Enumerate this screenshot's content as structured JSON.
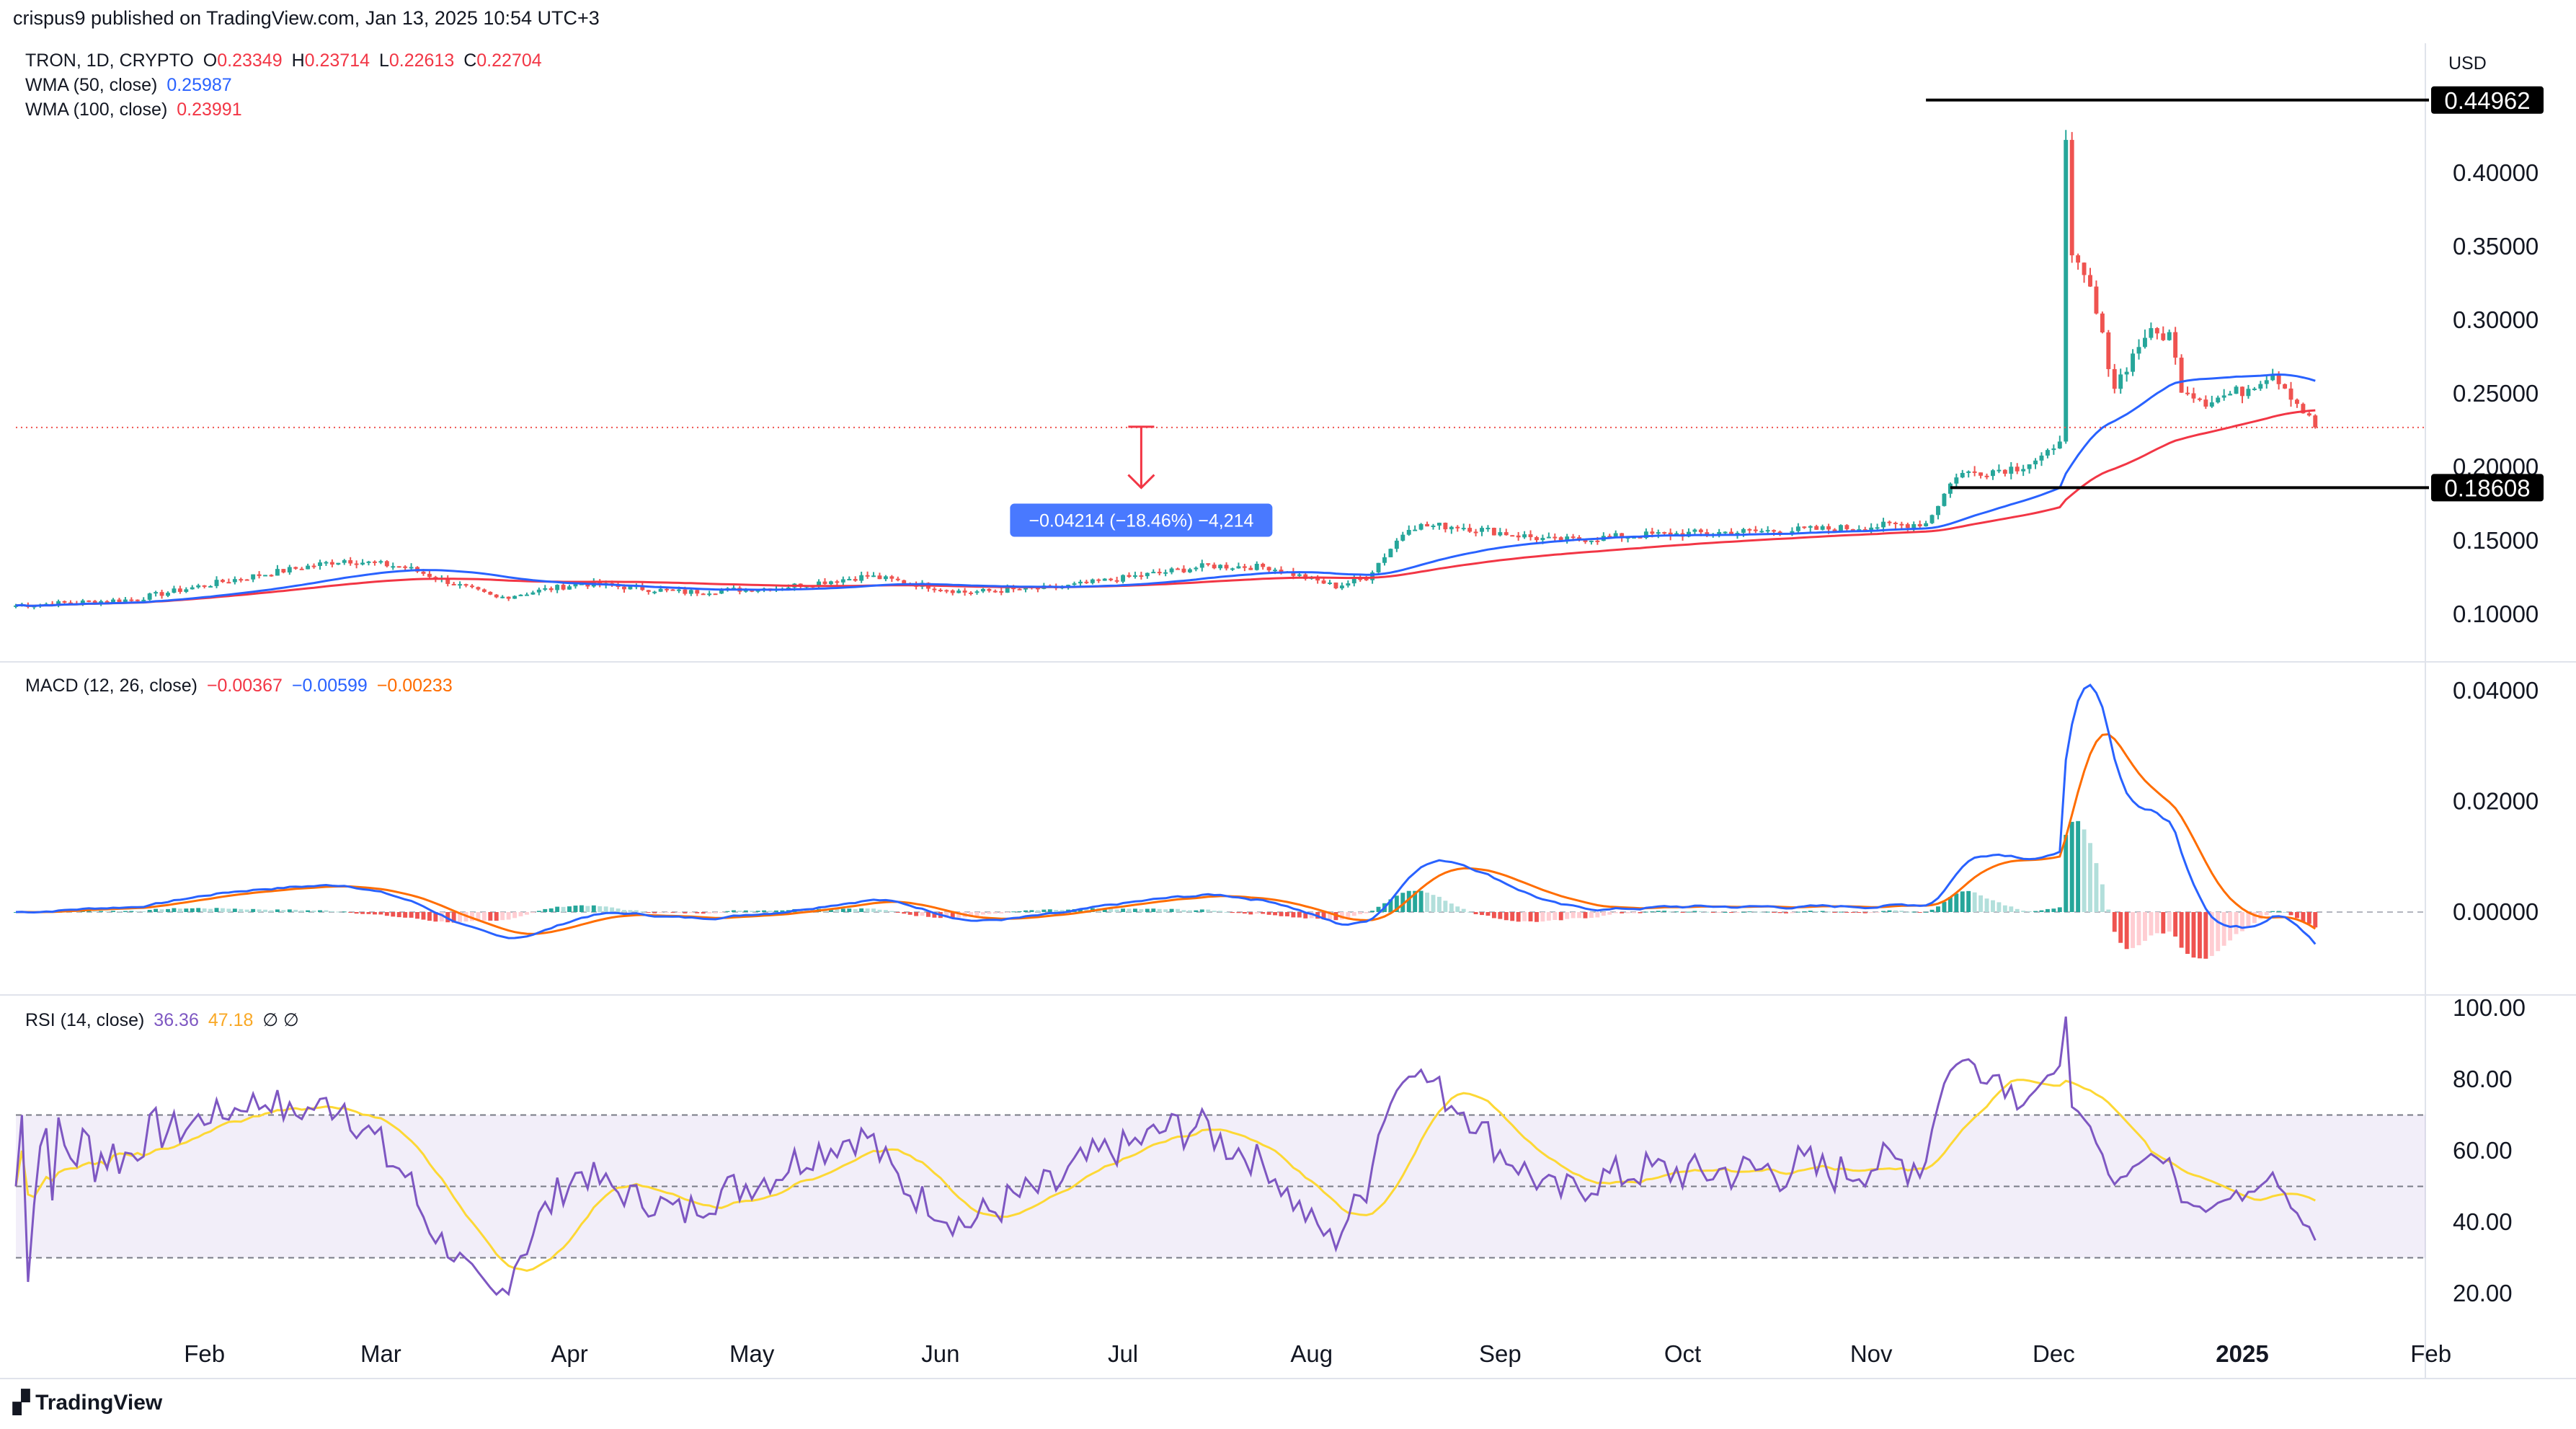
{
  "header": {
    "published": "crispus9 published on TradingView.com, Jan 13, 2025 10:54 UTC+3"
  },
  "footer": {
    "brand": "TradingView"
  },
  "colors": {
    "up": "#26a69a",
    "down": "#ef5350",
    "wma50": "#2962ff",
    "wma100": "#f23645",
    "macd": "#2962ff",
    "signal": "#ff6d00",
    "rsi": "#7e57c2",
    "rsi_ma": "#fdd835"
  },
  "chart_data": [
    {
      "type": "candlestick",
      "symbol_line": {
        "symbol": "TRON, 1D, CRYPTO",
        "o_label": "O",
        "o": "0.23349",
        "h_label": "H",
        "h": "0.23714",
        "l_label": "L",
        "l": "0.22613",
        "c_label": "C",
        "c": "0.22704"
      },
      "indicators": [
        {
          "label": "WMA (50, close)",
          "value": "0.25987",
          "color": "#2962ff"
        },
        {
          "label": "WMA (100, close)",
          "value": "0.23991",
          "color": "#f23645"
        }
      ],
      "currency": "USD",
      "y_ticks": [
        "0.40000",
        "0.35000",
        "0.30000",
        "0.25000",
        "0.20000",
        "0.15000",
        "0.10000"
      ],
      "ylim": [
        0.085,
        0.46
      ],
      "level_labels": [
        {
          "value": 0.44962,
          "text": "0.44962",
          "x_from": "2024-11-10"
        },
        {
          "value": 0.18608,
          "text": "0.18608",
          "x_from": "2024-11-14"
        }
      ],
      "last_price_line": 0.22704,
      "measure": {
        "text": "−0.04214 (−18.46%) −4,214",
        "x": "2024-07-04",
        "from": 0.2275,
        "to": 0.186
      },
      "x_ticks": [
        "Feb",
        "Mar",
        "Apr",
        "May",
        "Jun",
        "Jul",
        "Aug",
        "Sep",
        "Oct",
        "Nov",
        "Dec",
        "2025",
        "Feb"
      ],
      "x_tick_dates": [
        "2024-02-01",
        "2024-03-01",
        "2024-04-01",
        "2024-05-01",
        "2024-06-01",
        "2024-07-01",
        "2024-08-01",
        "2024-09-01",
        "2024-10-01",
        "2024-11-01",
        "2024-12-01",
        "2025-01-01",
        "2025-02-01"
      ],
      "close_keypoints": [
        [
          "2024-01-01",
          0.106
        ],
        [
          "2024-01-20",
          0.11
        ],
        [
          "2024-02-05",
          0.123
        ],
        [
          "2024-02-24",
          0.137
        ],
        [
          "2024-03-05",
          0.132
        ],
        [
          "2024-03-20",
          0.111
        ],
        [
          "2024-04-03",
          0.121
        ],
        [
          "2024-04-20",
          0.115
        ],
        [
          "2024-05-05",
          0.118
        ],
        [
          "2024-05-20",
          0.126
        ],
        [
          "2024-06-05",
          0.115
        ],
        [
          "2024-06-20",
          0.118
        ],
        [
          "2024-07-05",
          0.127
        ],
        [
          "2024-07-15",
          0.133
        ],
        [
          "2024-07-25",
          0.132
        ],
        [
          "2024-08-05",
          0.119
        ],
        [
          "2024-08-10",
          0.125
        ],
        [
          "2024-08-17",
          0.16
        ],
        [
          "2024-08-25",
          0.16
        ],
        [
          "2024-09-10",
          0.15
        ],
        [
          "2024-09-25",
          0.154
        ],
        [
          "2024-10-10",
          0.156
        ],
        [
          "2024-10-25",
          0.158
        ],
        [
          "2024-11-10",
          0.162
        ],
        [
          "2024-11-15",
          0.195
        ],
        [
          "2024-11-25",
          0.2
        ],
        [
          "2024-12-01",
          0.21
        ],
        [
          "2024-12-02",
          0.22
        ],
        [
          "2024-12-03",
          0.43
        ],
        [
          "2024-12-04",
          0.34
        ],
        [
          "2024-12-07",
          0.32
        ],
        [
          "2024-12-11",
          0.255
        ],
        [
          "2024-12-16",
          0.29
        ],
        [
          "2024-12-20",
          0.29
        ],
        [
          "2024-12-22",
          0.255
        ],
        [
          "2024-12-26",
          0.245
        ],
        [
          "2025-01-01",
          0.252
        ],
        [
          "2025-01-06",
          0.265
        ],
        [
          "2025-01-08",
          0.255
        ],
        [
          "2025-01-13",
          0.227
        ]
      ]
    },
    {
      "type": "macd",
      "legend": {
        "label": "MACD (12, 26, close)",
        "hist": "−0.00367",
        "macd": "−0.00599",
        "signal": "−0.00233"
      },
      "y_ticks": [
        "0.04000",
        "0.02000",
        "0.00000"
      ],
      "ylim": [
        -0.0145,
        0.0405
      ]
    },
    {
      "type": "rsi",
      "legend": {
        "label": "RSI (14, close)",
        "rsi": "36.36",
        "ma": "47.18",
        "extra": "∅ ∅"
      },
      "y_ticks": [
        "100.00",
        "80.00",
        "60.00",
        "40.00",
        "20.00"
      ],
      "ylim": [
        10,
        100
      ],
      "bands": {
        "upper": 70,
        "middle": 50,
        "lower": 30
      }
    }
  ]
}
